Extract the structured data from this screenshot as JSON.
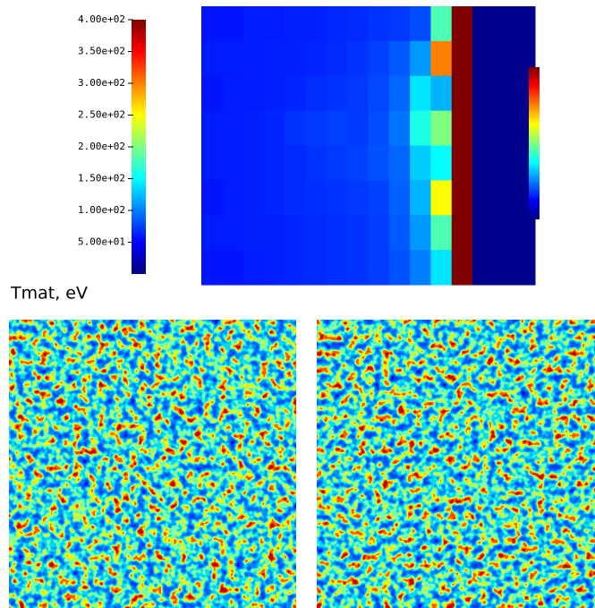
{
  "chart_data": {
    "type": "heatmap",
    "colorbar_label": "Tmat, eV",
    "colormap": "jet",
    "ylim": [
      0,
      400
    ],
    "yticks": [
      {
        "value": 50,
        "label": "5.00e+01"
      },
      {
        "value": 100,
        "label": "1.00e+02"
      },
      {
        "value": 150,
        "label": "1.50e+02"
      },
      {
        "value": 200,
        "label": "2.00e+02"
      },
      {
        "value": 250,
        "label": "2.50e+02"
      },
      {
        "value": 300,
        "label": "3.00e+02"
      },
      {
        "value": 350,
        "label": "3.50e+02"
      },
      {
        "value": 400,
        "label": "4.00e+02"
      }
    ],
    "z": [
      [
        58,
        58,
        60,
        60,
        62,
        62,
        65,
        66,
        70,
        72,
        80,
        180,
        400,
        5,
        5,
        5
      ],
      [
        60,
        60,
        60,
        62,
        62,
        64,
        66,
        70,
        75,
        85,
        110,
        300,
        400,
        5,
        5,
        5
      ],
      [
        58,
        60,
        60,
        62,
        64,
        68,
        70,
        72,
        78,
        90,
        140,
        120,
        400,
        5,
        5,
        5
      ],
      [
        60,
        60,
        62,
        64,
        70,
        72,
        75,
        72,
        80,
        95,
        160,
        200,
        400,
        5,
        5,
        5
      ],
      [
        60,
        60,
        62,
        64,
        66,
        70,
        72,
        75,
        82,
        90,
        130,
        150,
        400,
        5,
        5,
        5
      ],
      [
        58,
        60,
        62,
        64,
        66,
        68,
        70,
        72,
        76,
        88,
        120,
        250,
        400,
        5,
        5,
        5
      ],
      [
        60,
        60,
        62,
        62,
        64,
        66,
        68,
        70,
        74,
        85,
        110,
        180,
        400,
        5,
        5,
        5
      ],
      [
        58,
        58,
        60,
        62,
        64,
        66,
        68,
        70,
        74,
        82,
        100,
        140,
        400,
        5,
        5,
        5
      ]
    ]
  }
}
